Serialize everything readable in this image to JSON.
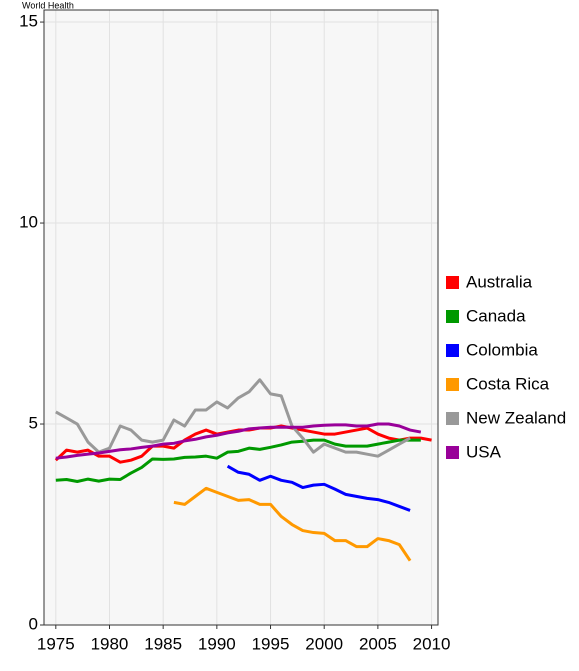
{
  "watermark": "World Health",
  "chart_data": {
    "type": "line",
    "x": [
      1975,
      1976,
      1977,
      1978,
      1979,
      1980,
      1981,
      1982,
      1983,
      1984,
      1985,
      1986,
      1987,
      1988,
      1989,
      1990,
      1991,
      1992,
      1993,
      1994,
      1995,
      1996,
      1997,
      1998,
      1999,
      2000,
      2001,
      2002,
      2003,
      2004,
      2005,
      2006,
      2007,
      2008,
      2009,
      2010
    ],
    "series": [
      {
        "name": "Australia",
        "color": "#ff0000",
        "values": [
          4.1,
          4.35,
          4.3,
          4.35,
          4.2,
          4.2,
          4.05,
          4.1,
          4.2,
          4.45,
          4.45,
          4.4,
          4.6,
          4.75,
          4.85,
          4.75,
          4.8,
          4.85,
          4.85,
          4.9,
          4.9,
          4.95,
          4.9,
          4.85,
          4.8,
          4.75,
          4.75,
          4.8,
          4.85,
          4.9,
          4.75,
          4.65,
          4.6,
          4.65,
          4.65,
          4.6
        ]
      },
      {
        "name": "Canada",
        "color": "#009900",
        "values": [
          3.6,
          3.62,
          3.57,
          3.63,
          3.58,
          3.63,
          3.62,
          3.78,
          3.92,
          4.13,
          4.12,
          4.13,
          4.17,
          4.18,
          4.2,
          4.15,
          4.3,
          4.32,
          4.4,
          4.37,
          4.42,
          4.48,
          4.55,
          4.57,
          4.6,
          4.6,
          4.5,
          4.45,
          4.45,
          4.45,
          4.5,
          4.55,
          4.6,
          4.6,
          4.6,
          null
        ]
      },
      {
        "name": "Colombia",
        "color": "#0000ff",
        "values": [
          null,
          null,
          null,
          null,
          null,
          null,
          null,
          null,
          null,
          null,
          null,
          null,
          null,
          null,
          null,
          null,
          3.95,
          3.8,
          3.75,
          3.6,
          3.7,
          3.6,
          3.55,
          3.42,
          3.48,
          3.5,
          3.38,
          3.25,
          3.2,
          3.15,
          3.12,
          3.05,
          2.95,
          2.85,
          null,
          null
        ]
      },
      {
        "name": "Costa Rica",
        "color": "#ff9900",
        "values": [
          null,
          null,
          null,
          null,
          null,
          null,
          null,
          null,
          null,
          null,
          null,
          3.05,
          3.0,
          3.2,
          3.4,
          3.3,
          3.2,
          3.1,
          3.12,
          3.0,
          3.0,
          2.7,
          2.5,
          2.35,
          2.3,
          2.28,
          2.1,
          2.1,
          1.95,
          1.95,
          2.15,
          2.1,
          2.0,
          1.6,
          null,
          null
        ]
      },
      {
        "name": "New Zealand",
        "color": "#999999",
        "values": [
          5.3,
          5.15,
          5.0,
          4.55,
          4.3,
          4.4,
          4.95,
          4.85,
          4.6,
          4.55,
          4.6,
          5.1,
          4.95,
          5.35,
          5.35,
          5.55,
          5.4,
          5.65,
          5.8,
          6.1,
          5.75,
          5.7,
          4.95,
          4.65,
          4.3,
          4.5,
          4.4,
          4.3,
          4.3,
          4.25,
          4.2,
          4.35,
          4.5,
          4.65,
          null,
          null
        ]
      },
      {
        "name": "USA",
        "color": "#990099",
        "values": [
          4.15,
          4.18,
          4.22,
          4.25,
          4.28,
          4.32,
          4.36,
          4.38,
          4.42,
          4.45,
          4.5,
          4.52,
          4.58,
          4.62,
          4.68,
          4.72,
          4.78,
          4.82,
          4.88,
          4.9,
          4.92,
          4.92,
          4.92,
          4.92,
          4.95,
          4.97,
          4.98,
          4.98,
          4.95,
          4.95,
          5.0,
          5.0,
          4.95,
          4.85,
          4.8,
          null
        ]
      }
    ],
    "xlim": [
      1973.9,
      2010.6
    ],
    "ylim": [
      0,
      15.3
    ],
    "xticks": [
      1975,
      1980,
      1985,
      1990,
      1995,
      2000,
      2005,
      2010
    ],
    "yticks": [
      0,
      5,
      10,
      15
    ],
    "grid": true,
    "legend": "right"
  }
}
